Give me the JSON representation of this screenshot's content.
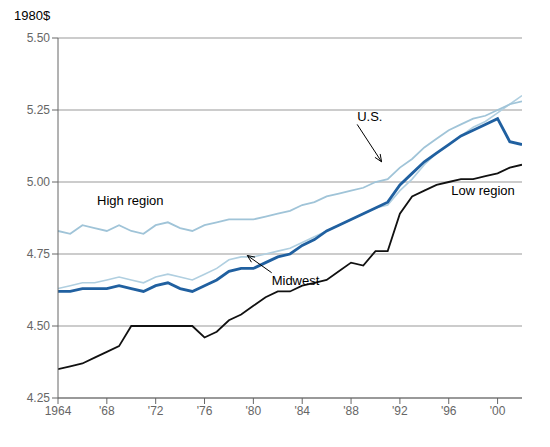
{
  "chart_data": {
    "type": "line",
    "title": "1980$",
    "x": [
      1964,
      1965,
      1966,
      1967,
      1968,
      1969,
      1970,
      1971,
      1972,
      1973,
      1974,
      1975,
      1976,
      1977,
      1978,
      1979,
      1980,
      1981,
      1982,
      1983,
      1984,
      1985,
      1986,
      1987,
      1988,
      1989,
      1990,
      1991,
      1992,
      1993,
      1994,
      1995,
      1996,
      1997,
      1998,
      1999,
      2000,
      2001,
      2002
    ],
    "series": [
      {
        "color": "#111111",
        "values": [
          4.35,
          4.36,
          4.37,
          4.39,
          4.41,
          4.43,
          4.5,
          4.5,
          4.5,
          4.5,
          4.5,
          4.5,
          4.46,
          4.48,
          4.52,
          4.54,
          4.57,
          4.6,
          4.62,
          4.62,
          4.64,
          4.65,
          4.66,
          4.69,
          4.72,
          4.71,
          4.76,
          4.76,
          4.89,
          4.95,
          4.97,
          4.99,
          5.0,
          5.01,
          5.01,
          5.02,
          5.03,
          5.05,
          5.06
        ]
      },
      {
        "color": "#b0cfe0",
        "values": [
          4.63,
          4.64,
          4.65,
          4.65,
          4.66,
          4.67,
          4.66,
          4.65,
          4.67,
          4.68,
          4.67,
          4.66,
          4.68,
          4.7,
          4.73,
          4.74,
          4.74,
          4.75,
          4.76,
          4.77,
          4.79,
          4.81,
          4.83,
          4.85,
          4.87,
          4.89,
          4.91,
          4.92,
          4.97,
          5.01,
          5.06,
          5.1,
          5.13,
          5.16,
          5.19,
          5.21,
          5.24,
          5.27,
          5.3
        ]
      },
      {
        "color": "#a0c4d8",
        "values": [
          4.83,
          4.82,
          4.85,
          4.84,
          4.83,
          4.85,
          4.83,
          4.82,
          4.85,
          4.86,
          4.84,
          4.83,
          4.85,
          4.86,
          4.87,
          4.87,
          4.87,
          4.88,
          4.89,
          4.9,
          4.92,
          4.93,
          4.95,
          4.96,
          4.97,
          4.98,
          5.0,
          5.01,
          5.05,
          5.08,
          5.12,
          5.15,
          5.18,
          5.2,
          5.22,
          5.23,
          5.25,
          5.27,
          5.28
        ]
      },
      {
        "color": "#2060a0",
        "values": [
          4.62,
          4.62,
          4.63,
          4.63,
          4.63,
          4.64,
          4.63,
          4.62,
          4.64,
          4.65,
          4.63,
          4.62,
          4.64,
          4.66,
          4.69,
          4.7,
          4.7,
          4.72,
          4.74,
          4.75,
          4.78,
          4.8,
          4.83,
          4.85,
          4.87,
          4.89,
          4.91,
          4.93,
          4.99,
          5.03,
          5.07,
          5.1,
          5.13,
          5.16,
          5.18,
          5.2,
          5.22,
          5.14,
          5.13
        ]
      }
    ],
    "xlim": [
      1964,
      2002
    ],
    "xticks": [
      1964,
      {
        "value": 1968,
        "label": "'68"
      },
      {
        "value": 1972,
        "label": "'72"
      },
      {
        "value": 1976,
        "label": "'76"
      },
      {
        "value": 1980,
        "label": "'80"
      },
      {
        "value": 1984,
        "label": "'84"
      },
      {
        "value": 1988,
        "label": "'88"
      },
      {
        "value": 1992,
        "label": "'92"
      },
      {
        "value": 1996,
        "label": "'96"
      },
      {
        "value": 2000,
        "label": "'00"
      }
    ],
    "ylim": [
      4.25,
      5.5
    ],
    "yticks": [
      4.25,
      {
        "value": 4.5,
        "label": "4.50"
      },
      4.75,
      {
        "value": 5,
        "label": "5.00"
      },
      5.25,
      {
        "value": 5.5,
        "label": "5.50"
      }
    ],
    "grid": true,
    "annotations": [
      {
        "text": "U.S.",
        "x": 1988.5,
        "y": 5.2,
        "arrow_x": 1990.5,
        "arrow_y": 5.07
      },
      {
        "text": "Midwest",
        "x": 1981.5,
        "y": 4.685,
        "arrow_x": 1979.5,
        "arrow_y": 4.745
      },
      {
        "text": "High region",
        "x": 1967.2,
        "y": 4.91
      },
      {
        "text": "Low region",
        "x": 1996.2,
        "y": 4.995
      }
    ]
  }
}
